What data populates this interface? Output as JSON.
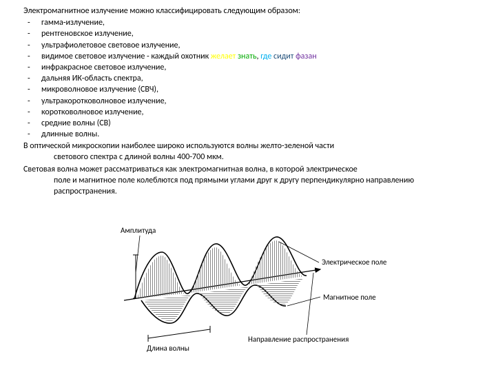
{
  "intro": "Электромагнитное излучение можно классифицировать  следующим образом:",
  "items": [
    "гамма-излучение,",
    "рентгеновское излучение,",
    "ультрафиолетовое световое излучение,",
    "",
    "инфракрасное световое излучение,",
    " дальняя ИК-область спектра,",
    "микроволновое излучение (СВЧ),",
    "ультракоротковолновое излучение,",
    "коротковолновое излучение,",
    "средние волны (СВ)",
    " длинные волны."
  ],
  "visible": {
    "prefix": "видимое световое излучение - каждый охотник ",
    "parts": [
      {
        "text": "желает",
        "color": "#ffff00"
      },
      {
        "text": " ",
        "color": "#000000"
      },
      {
        "text": "знать",
        "color": "#00aa00"
      },
      {
        "text": ", ",
        "color": "#000000"
      },
      {
        "text": "где",
        "color": "#00b0f0"
      },
      {
        "text": " ",
        "color": "#000000"
      },
      {
        "text": "сидит",
        "color": "#1f4e79"
      },
      {
        "text": " ",
        "color": "#000000"
      },
      {
        "text": "фазан",
        "color": "#7030a0"
      }
    ]
  },
  "para1_l1": " В оптической микроскопии наиболее широко используются волны желто-зеленой части",
  "para1_l2": "светового спектра  с длиной волны 400-700 мкм.",
  "para2_l1": "Световая волна может рассматриваться как электромагнитная волна, в которой электрическое",
  "para2_l2": "поле и магнитное поле колеблются под прямыми углами друг к другу перпендикулярно направлению распространения.",
  "diagram": {
    "amplitude": "Амплитуда",
    "wavelength": "Длина волны",
    "efield": "Электрическое поле",
    "mfield": "Магнитное поле",
    "direction": "Направление распространения",
    "stroke": "#000000",
    "hatch": "#666666",
    "labelFontSize": 10
  }
}
